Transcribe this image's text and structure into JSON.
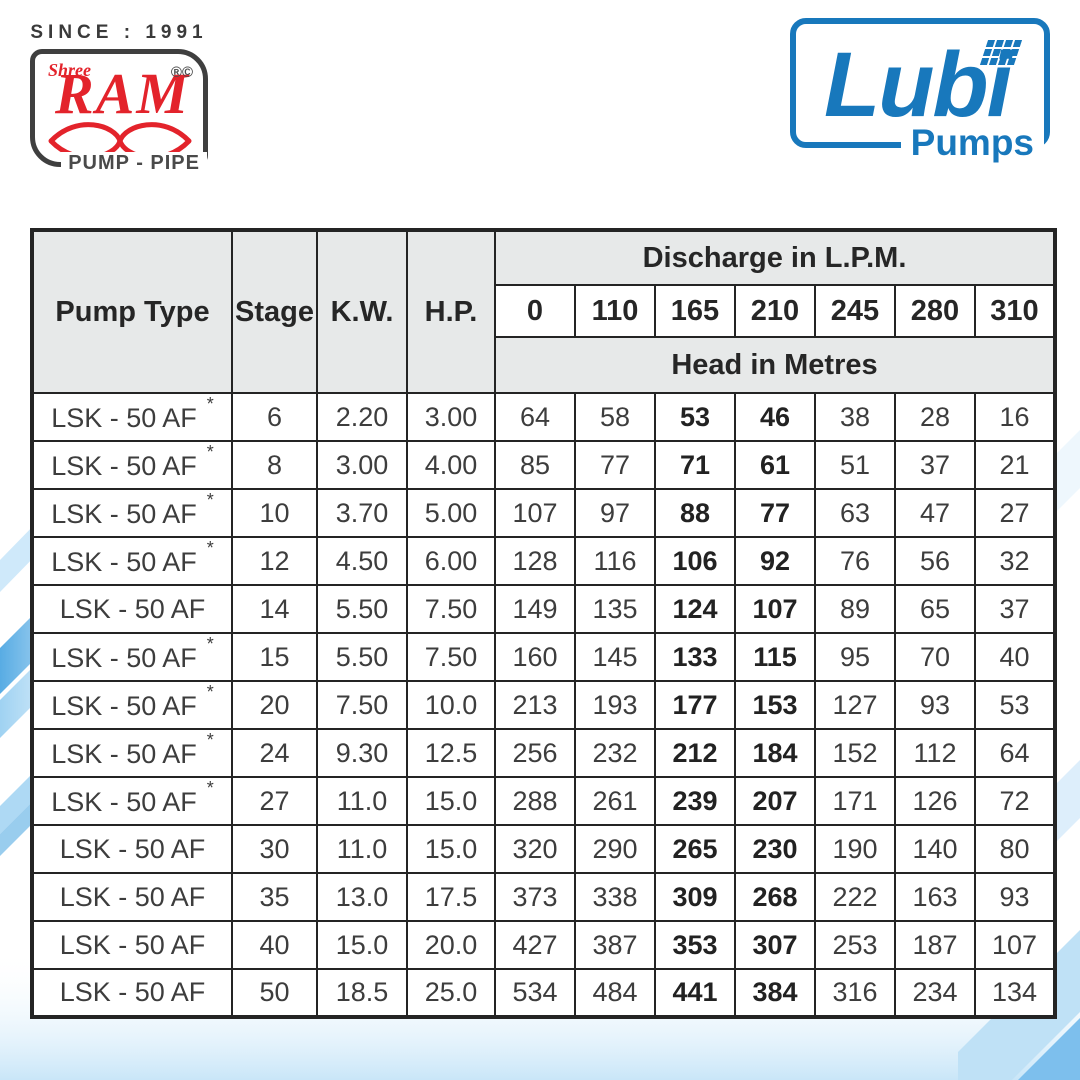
{
  "branding": {
    "ram_logo": {
      "since_text": "SINCE : 1991",
      "shree": "Shree",
      "name": "RAM",
      "marks": "®©",
      "tagline": "PUMP - PIPE"
    },
    "lubi_logo": {
      "name": "Lubi",
      "tagline": "Pumps"
    }
  },
  "colors": {
    "lubi_blue": "#1878bc",
    "ram_red": "#e3232b",
    "header_gray": "#e7e9e9",
    "table_border": "#242424",
    "wave_blue_strong": "#58ace4",
    "wave_blue_light": "#cfe9fa"
  },
  "table": {
    "headers": {
      "pump_type": "Pump Type",
      "stage": "Stage",
      "kw": "K.W.",
      "hp": "H.P.",
      "discharge_title": "Discharge in L.P.M.",
      "discharge_values": [
        "0",
        "110",
        "165",
        "210",
        "245",
        "280",
        "310"
      ],
      "head_title": "Head in Metres"
    },
    "bold_discharge_indices": [
      2,
      3
    ],
    "rows": [
      {
        "pump_type": "LSK - 50 AF",
        "asterisk": true,
        "stage": "6",
        "kw": "2.20",
        "hp": "3.00",
        "heads": [
          "64",
          "58",
          "53",
          "46",
          "38",
          "28",
          "16"
        ]
      },
      {
        "pump_type": "LSK - 50 AF",
        "asterisk": true,
        "stage": "8",
        "kw": "3.00",
        "hp": "4.00",
        "heads": [
          "85",
          "77",
          "71",
          "61",
          "51",
          "37",
          "21"
        ]
      },
      {
        "pump_type": "LSK - 50 AF",
        "asterisk": true,
        "stage": "10",
        "kw": "3.70",
        "hp": "5.00",
        "heads": [
          "107",
          "97",
          "88",
          "77",
          "63",
          "47",
          "27"
        ]
      },
      {
        "pump_type": "LSK - 50 AF",
        "asterisk": true,
        "stage": "12",
        "kw": "4.50",
        "hp": "6.00",
        "heads": [
          "128",
          "116",
          "106",
          "92",
          "76",
          "56",
          "32"
        ]
      },
      {
        "pump_type": "LSK - 50 AF",
        "asterisk": false,
        "stage": "14",
        "kw": "5.50",
        "hp": "7.50",
        "heads": [
          "149",
          "135",
          "124",
          "107",
          "89",
          "65",
          "37"
        ]
      },
      {
        "pump_type": "LSK - 50 AF",
        "asterisk": true,
        "stage": "15",
        "kw": "5.50",
        "hp": "7.50",
        "heads": [
          "160",
          "145",
          "133",
          "115",
          "95",
          "70",
          "40"
        ]
      },
      {
        "pump_type": "LSK - 50 AF",
        "asterisk": true,
        "stage": "20",
        "kw": "7.50",
        "hp": "10.0",
        "heads": [
          "213",
          "193",
          "177",
          "153",
          "127",
          "93",
          "53"
        ]
      },
      {
        "pump_type": "LSK - 50 AF",
        "asterisk": true,
        "stage": "24",
        "kw": "9.30",
        "hp": "12.5",
        "heads": [
          "256",
          "232",
          "212",
          "184",
          "152",
          "112",
          "64"
        ]
      },
      {
        "pump_type": "LSK - 50 AF",
        "asterisk": true,
        "stage": "27",
        "kw": "11.0",
        "hp": "15.0",
        "heads": [
          "288",
          "261",
          "239",
          "207",
          "171",
          "126",
          "72"
        ]
      },
      {
        "pump_type": "LSK - 50 AF",
        "asterisk": false,
        "stage": "30",
        "kw": "11.0",
        "hp": "15.0",
        "heads": [
          "320",
          "290",
          "265",
          "230",
          "190",
          "140",
          "80"
        ]
      },
      {
        "pump_type": "LSK - 50 AF",
        "asterisk": false,
        "stage": "35",
        "kw": "13.0",
        "hp": "17.5",
        "heads": [
          "373",
          "338",
          "309",
          "268",
          "222",
          "163",
          "93"
        ]
      },
      {
        "pump_type": "LSK - 50 AF",
        "asterisk": false,
        "stage": "40",
        "kw": "15.0",
        "hp": "20.0",
        "heads": [
          "427",
          "387",
          "353",
          "307",
          "253",
          "187",
          "107"
        ]
      },
      {
        "pump_type": "LSK - 50 AF",
        "asterisk": false,
        "stage": "50",
        "kw": "18.5",
        "hp": "25.0",
        "heads": [
          "534",
          "484",
          "441",
          "384",
          "316",
          "234",
          "134"
        ]
      }
    ]
  }
}
